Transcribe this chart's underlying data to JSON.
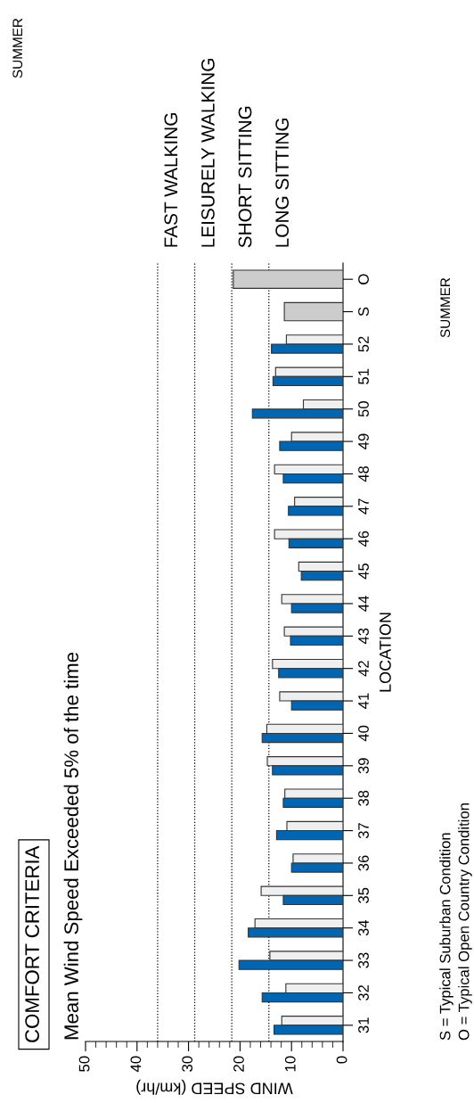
{
  "chart_data": {
    "type": "bar",
    "orientation": "horizontal",
    "title": "COMFORT CRITERIA",
    "subtitle": "Mean Wind Speed Exceeded 5% of the time",
    "xlabel": "WIND SPEED (km/hr)",
    "ylabel": "LOCATION",
    "categories": [
      "O",
      "S",
      "52",
      "51",
      "50",
      "49",
      "48",
      "47",
      "46",
      "45",
      "44",
      "43",
      "42",
      "41",
      "40",
      "39",
      "38",
      "37",
      "36",
      "35",
      "34",
      "33",
      "32",
      "31"
    ],
    "series": [
      {
        "color": "#efefef",
        "values": [
          null,
          null,
          11.0,
          13.1,
          7.7,
          10.0,
          13.3,
          9.4,
          13.3,
          8.6,
          11.9,
          11.4,
          13.7,
          12.3,
          14.8,
          14.7,
          11.3,
          10.9,
          9.7,
          15.9,
          17.1,
          14.2,
          11.1,
          11.9
        ]
      },
      {
        "color": "#0066b3",
        "values": [
          null,
          null,
          13.9,
          13.6,
          17.6,
          12.3,
          11.6,
          10.6,
          10.5,
          8.1,
          10.0,
          10.2,
          12.5,
          10.0,
          15.7,
          13.7,
          11.6,
          12.9,
          10.0,
          11.6,
          18.4,
          20.2,
          15.7,
          13.4
        ]
      },
      {
        "color": "#cccccc",
        "values": [
          21.3,
          11.4,
          null,
          null,
          null,
          null,
          null,
          null,
          null,
          null,
          null,
          null,
          null,
          null,
          null,
          null,
          null,
          null,
          null,
          null,
          null,
          null,
          null,
          null
        ]
      }
    ],
    "xlim": [
      50,
      0
    ],
    "xticks": [
      50,
      40,
      30,
      20,
      10,
      0
    ],
    "grid": false,
    "legend": false,
    "ref_lines": [
      {
        "axis": "x",
        "value": 36,
        "label": "FAST WALKING",
        "line_style": "dotted",
        "color": "#000000"
      },
      {
        "axis": "x",
        "value": 28.8,
        "label": "LEISURELY WALKING",
        "line_style": "dotted",
        "color": "#000000"
      },
      {
        "axis": "x",
        "value": 21.6,
        "label": "SHORT SITTING",
        "line_style": "dotted",
        "color": "#000000"
      },
      {
        "axis": "x",
        "value": 14.4,
        "label": "LONG SITTING",
        "line_style": "dotted",
        "color": "#000000"
      }
    ],
    "annotations": [
      "SUMMER",
      "SUMMER",
      "S = Typical Suburban Condition",
      "O = Typical Open Country Condition"
    ]
  }
}
